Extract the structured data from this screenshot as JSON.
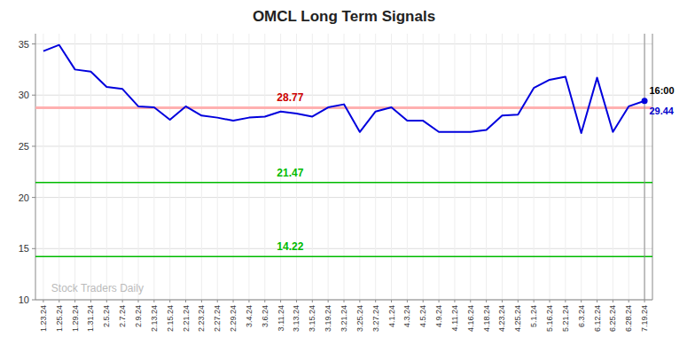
{
  "chart_data": {
    "type": "line",
    "title": "OMCL Long Term Signals",
    "categories": [
      "1.23.24",
      "1.25.24",
      "1.29.24",
      "1.31.24",
      "2.5.24",
      "2.7.24",
      "2.9.24",
      "2.13.24",
      "2.15.24",
      "2.21.24",
      "2.23.24",
      "2.27.24",
      "2.29.24",
      "3.4.24",
      "3.6.24",
      "3.11.24",
      "3.13.24",
      "3.15.24",
      "3.19.24",
      "3.21.24",
      "3.25.24",
      "3.27.24",
      "4.1.24",
      "4.3.24",
      "4.5.24",
      "4.9.24",
      "4.11.24",
      "4.16.24",
      "4.18.24",
      "4.23.24",
      "4.25.24",
      "5.1.24",
      "5.16.24",
      "5.21.24",
      "6.3.24",
      "6.12.24",
      "6.25.24",
      "6.28.24",
      "7.19.24"
    ],
    "values": [
      34.3,
      34.9,
      32.5,
      32.3,
      30.8,
      30.6,
      28.9,
      28.8,
      27.6,
      28.9,
      28.0,
      27.8,
      27.5,
      27.8,
      27.9,
      28.4,
      28.2,
      27.9,
      28.8,
      29.1,
      26.4,
      28.4,
      28.8,
      27.5,
      27.5,
      26.4,
      26.4,
      26.4,
      26.6,
      28.0,
      28.1,
      30.7,
      31.5,
      31.8,
      26.3,
      31.7,
      26.4,
      28.9,
      29.44
    ],
    "color": "#0000dd",
    "ylim": [
      10,
      36
    ],
    "yticks": [
      10,
      15,
      20,
      25,
      30,
      35
    ],
    "grid": true,
    "reference_lines": [
      {
        "value": 28.77,
        "label": "28.77",
        "color": "#ffb0b0",
        "label_color": "#cc0000"
      },
      {
        "value": 21.47,
        "label": "21.47",
        "color": "#00bb00",
        "label_color": "#00bb00"
      },
      {
        "value": 14.22,
        "label": "14.22",
        "color": "#00bb00",
        "label_color": "#00bb00"
      }
    ],
    "annotations": [
      {
        "text": "16:00",
        "color": "#000000"
      },
      {
        "text": "29.44",
        "color": "#0000cc"
      }
    ],
    "watermark": "Stock Traders Daily"
  }
}
